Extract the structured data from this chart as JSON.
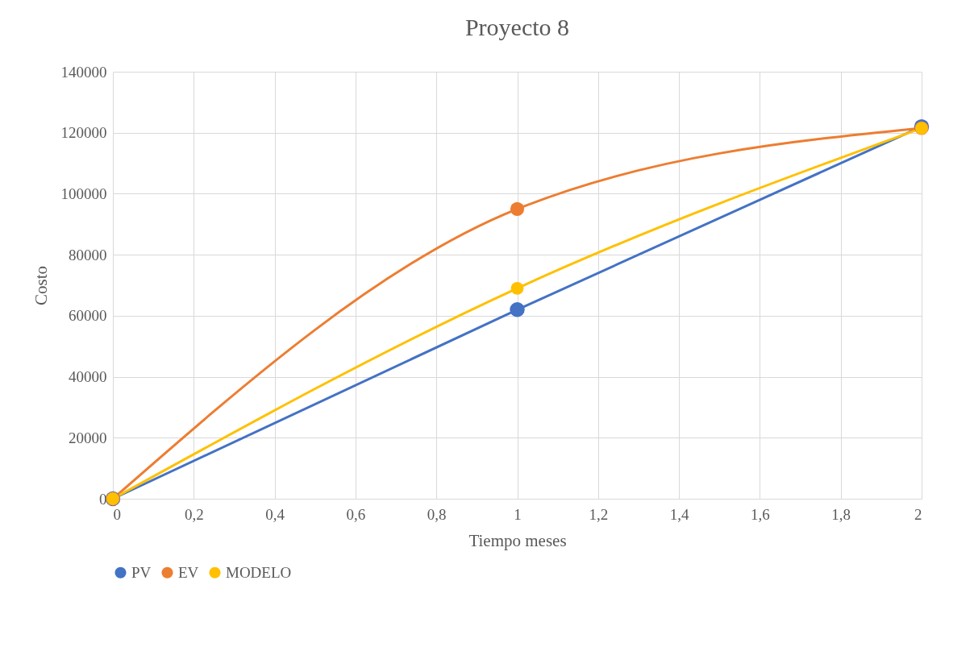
{
  "chart_data": {
    "type": "line",
    "title": "Proyecto 8",
    "xlabel": "Tiempo meses",
    "ylabel": "Costo",
    "x": [
      0,
      1,
      2
    ],
    "series": [
      {
        "name": "PV",
        "color": "#4472c4",
        "values": [
          0,
          62000,
          122000
        ]
      },
      {
        "name": "EV",
        "color": "#ed7d31",
        "values": [
          0,
          95000,
          121500
        ]
      },
      {
        "name": "MODELO",
        "color": "#ffc000",
        "values": [
          0,
          69000,
          121500
        ]
      }
    ],
    "xlim": [
      0,
      2
    ],
    "xticks": [
      0,
      {
        "value": 0.2,
        "label": "0,2"
      },
      {
        "value": 0.4,
        "label": "0,4"
      },
      {
        "value": 0.6,
        "label": "0,6"
      },
      {
        "value": 0.8,
        "label": "0,8"
      },
      1,
      {
        "value": 1.2,
        "label": "1,2"
      },
      {
        "value": 1.4,
        "label": "1,4"
      },
      {
        "value": 1.6,
        "label": "1,6"
      },
      {
        "value": 1.8,
        "label": "1,8"
      },
      2
    ],
    "ylim": [
      0,
      140000
    ],
    "yticks": [
      0,
      20000,
      40000,
      60000,
      80000,
      100000,
      120000,
      140000
    ],
    "grid": true,
    "legend": "bottom",
    "marker": "circle",
    "line_style": "solid"
  }
}
